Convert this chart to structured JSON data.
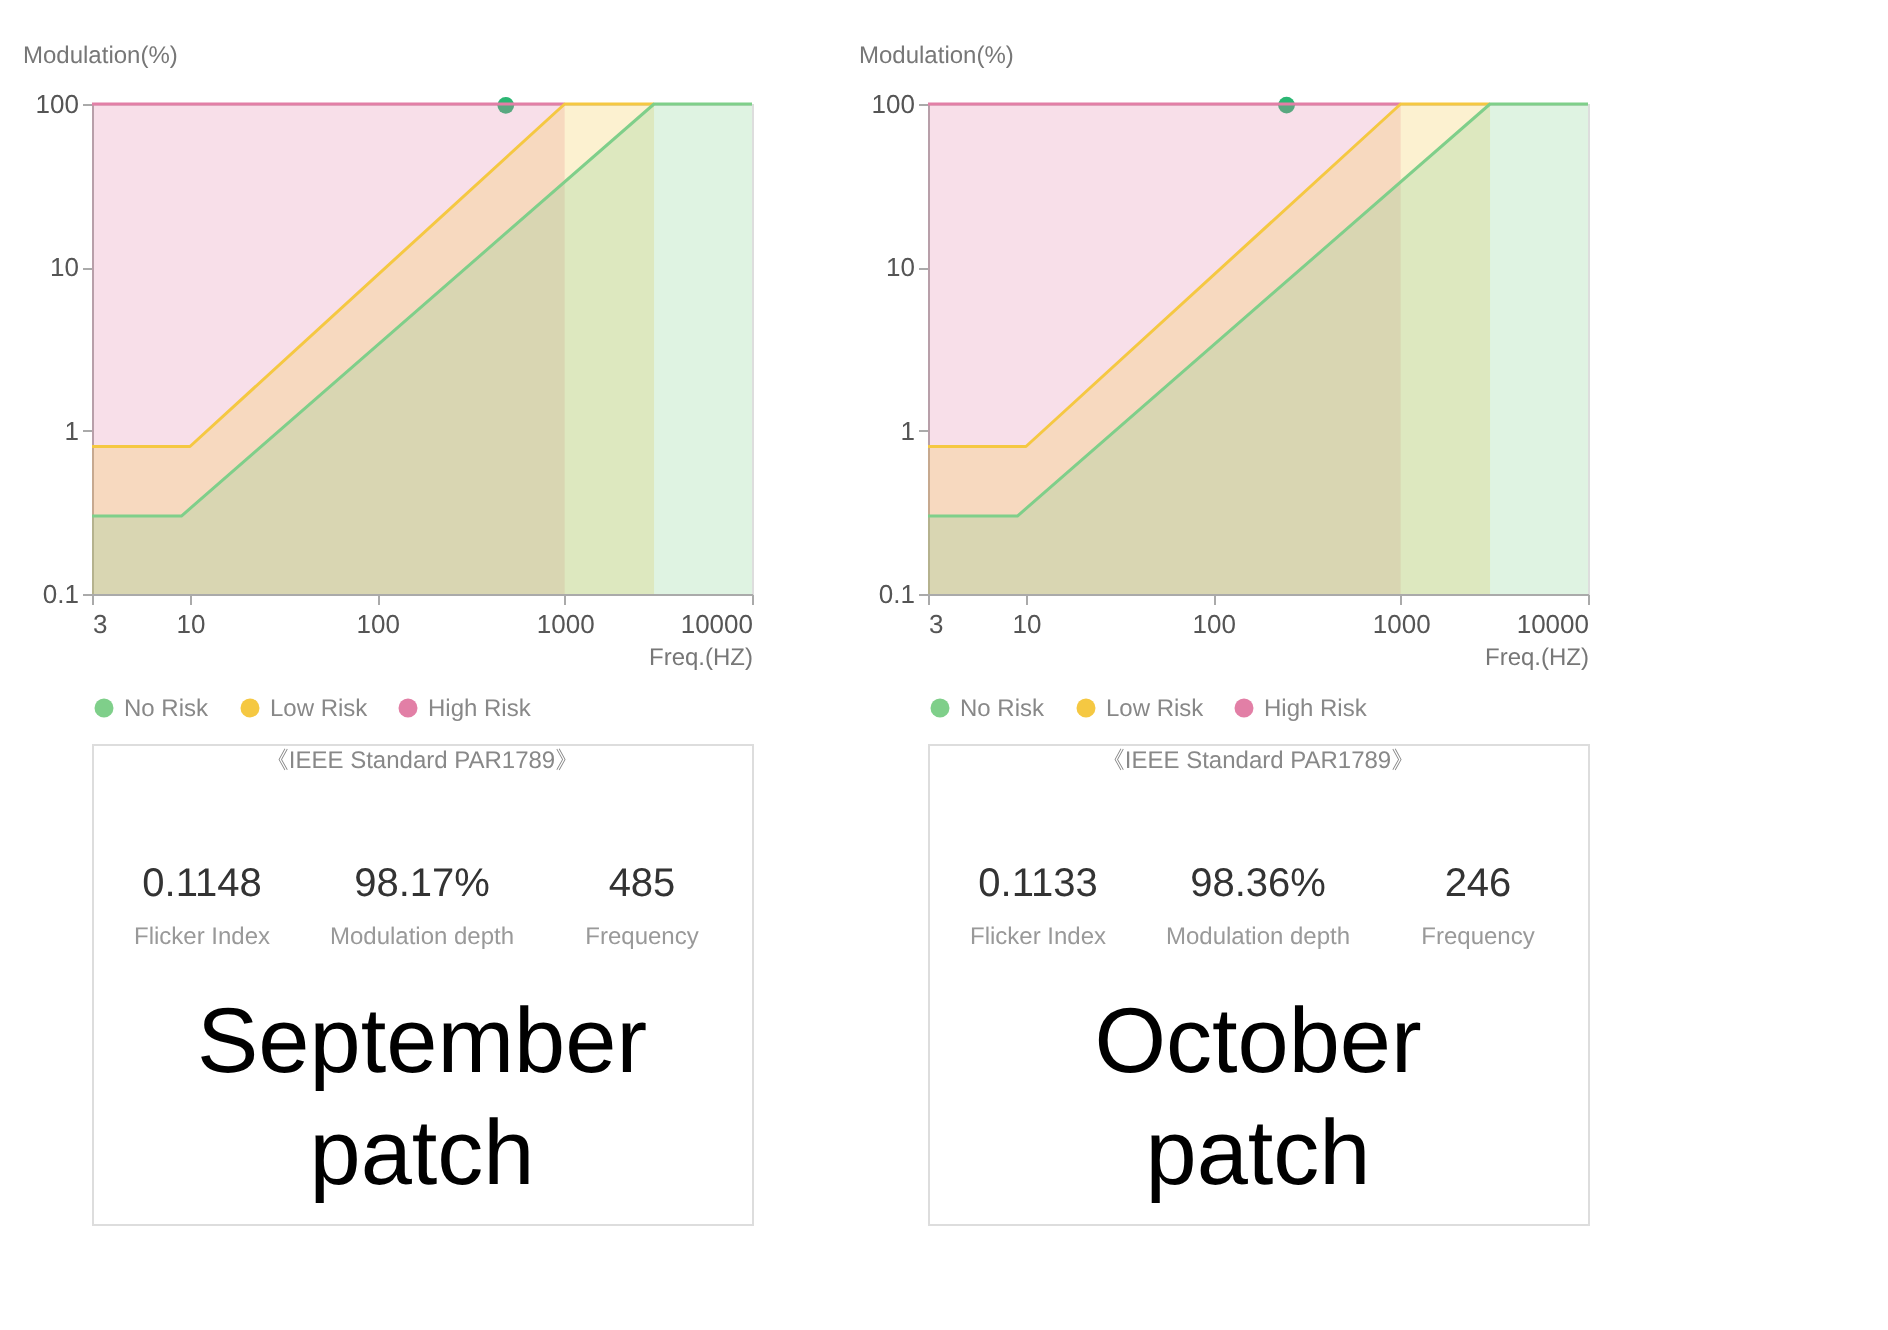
{
  "chart_data": [
    {
      "type": "area",
      "title": "September patch",
      "xlabel": "Freq.(HZ)",
      "ylabel": "Modulation(%)",
      "log": "xy",
      "xlim": [
        3,
        10000
      ],
      "xticks": [
        3,
        10,
        100,
        1000,
        10000
      ],
      "ylim": [
        0.1,
        100
      ],
      "yticks": [
        0.1,
        1,
        10,
        100
      ],
      "grid": false,
      "legend": "bottom",
      "series": [
        {
          "name": "No Risk",
          "type": "area",
          "color": "#7fcf8a",
          "x": [
            3,
            9,
            3000,
            10000
          ],
          "values": [
            0.3,
            0.3,
            100,
            100
          ]
        },
        {
          "name": "Low Risk",
          "type": "area",
          "color": "#f5c842",
          "x": [
            3,
            10,
            1000,
            3000
          ],
          "values": [
            0.8,
            0.8,
            100,
            100
          ]
        },
        {
          "name": "High Risk",
          "type": "area",
          "color": "#e27fa6",
          "x": [
            3,
            1000
          ],
          "values": [
            100,
            100
          ]
        },
        {
          "type": "scatter",
          "color": "#2bb673",
          "x": [
            485
          ],
          "values": [
            98.17
          ]
        }
      ],
      "annotations": [
        "《IEEE Standard PAR1789》",
        "0.1148",
        "Flicker Index",
        "98.17%",
        "Modulation depth",
        "485",
        "Frequency"
      ]
    },
    {
      "type": "area",
      "title": "October patch",
      "xlabel": "Freq.(HZ)",
      "ylabel": "Modulation(%)",
      "log": "xy",
      "xlim": [
        3,
        10000
      ],
      "xticks": [
        3,
        10,
        100,
        1000,
        10000
      ],
      "ylim": [
        0.1,
        100
      ],
      "yticks": [
        0.1,
        1,
        10,
        100
      ],
      "grid": false,
      "legend": "bottom",
      "series": [
        {
          "name": "No Risk",
          "type": "area",
          "color": "#7fcf8a",
          "x": [
            3,
            9,
            3000,
            10000
          ],
          "values": [
            0.3,
            0.3,
            100,
            100
          ]
        },
        {
          "name": "Low Risk",
          "type": "area",
          "color": "#f5c842",
          "x": [
            3,
            10,
            1000,
            3000
          ],
          "values": [
            0.8,
            0.8,
            100,
            100
          ]
        },
        {
          "name": "High Risk",
          "type": "area",
          "color": "#e27fa6",
          "x": [
            3,
            1000
          ],
          "values": [
            100,
            100
          ]
        },
        {
          "type": "scatter",
          "color": "#2bb673",
          "x": [
            246
          ],
          "values": [
            98.36
          ]
        }
      ],
      "annotations": [
        "《IEEE Standard PAR1789》",
        "0.1133",
        "Flicker Index",
        "98.36%",
        "Modulation depth",
        "246",
        "Frequency"
      ]
    }
  ]
}
